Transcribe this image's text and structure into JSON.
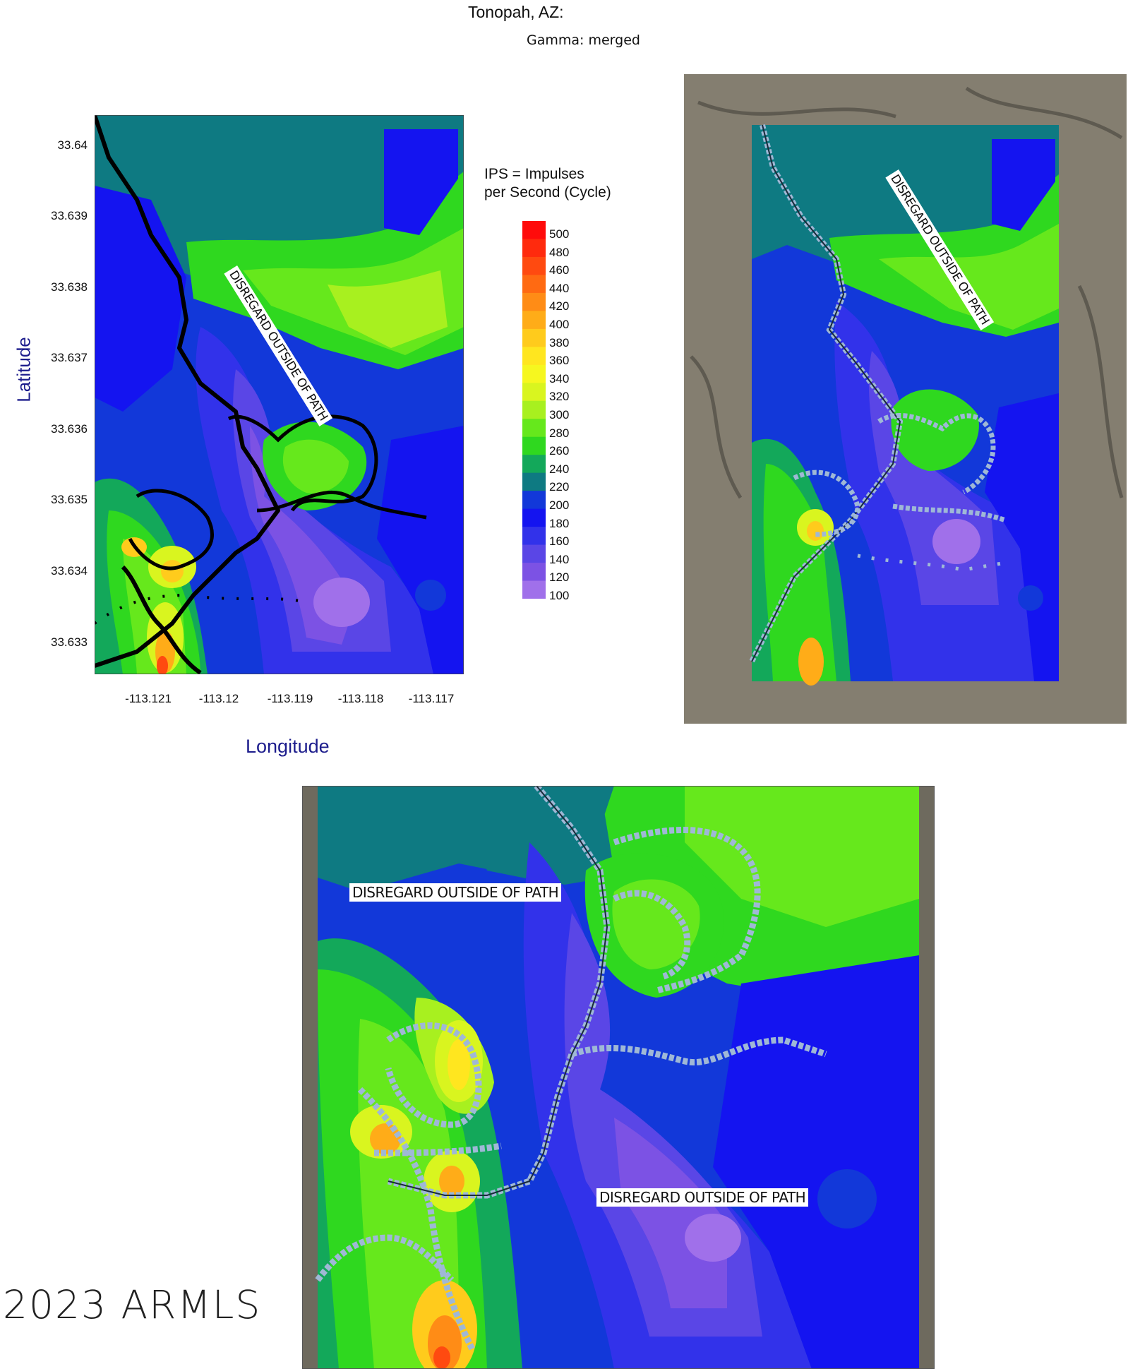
{
  "header": {
    "title": "Tonopah, AZ:",
    "subtitle": "Gamma: merged"
  },
  "axes": {
    "ylabel": "Latitude",
    "xlabel": "Longitude",
    "y_ticks": [
      "33.64",
      "33.639",
      "33.638",
      "33.637",
      "33.636",
      "33.635",
      "33.634",
      "33.633"
    ],
    "x_ticks": [
      "-113.121",
      "-113.12",
      "-113.119",
      "-113.118",
      "-113.117"
    ]
  },
  "legend": {
    "title_line1": "IPS = Impulses",
    "title_line2": "per Second (Cycle)",
    "levels": [
      "500",
      "480",
      "460",
      "440",
      "420",
      "400",
      "380",
      "360",
      "340",
      "320",
      "300",
      "280",
      "260",
      "240",
      "220",
      "200",
      "180",
      "160",
      "140",
      "120",
      "100"
    ],
    "colors": [
      "#ff0b0b",
      "#ff2a0d",
      "#ff4a10",
      "#ff6a12",
      "#ff8c16",
      "#ffac18",
      "#ffcb1c",
      "#ffe61f",
      "#f6f71f",
      "#d9f51f",
      "#a8f01f",
      "#66e81c",
      "#2fd81f",
      "#13a85a",
      "#0e7a82",
      "#1238d9",
      "#1414f0",
      "#3232ea",
      "#5a46e6",
      "#7c52e4",
      "#a070ea"
    ]
  },
  "annotations": {
    "disregard": "DISREGARD OUTSIDE OF PATH"
  },
  "footer": {
    "copyright": "2023 ARMLS"
  },
  "chart_data": {
    "type": "heatmap",
    "title": "Tonopah, AZ:",
    "subtitle": "Gamma: merged",
    "xlabel": "Longitude",
    "ylabel": "Latitude",
    "xlim": [
      -113.1217,
      -113.1165
    ],
    "ylim": [
      33.6325,
      33.6404
    ],
    "colorbar_label": "IPS = Impulses per Second (Cycle)",
    "colorbar_range": [
      100,
      500
    ],
    "colorbar_step": 20,
    "path_overlay": true
  }
}
